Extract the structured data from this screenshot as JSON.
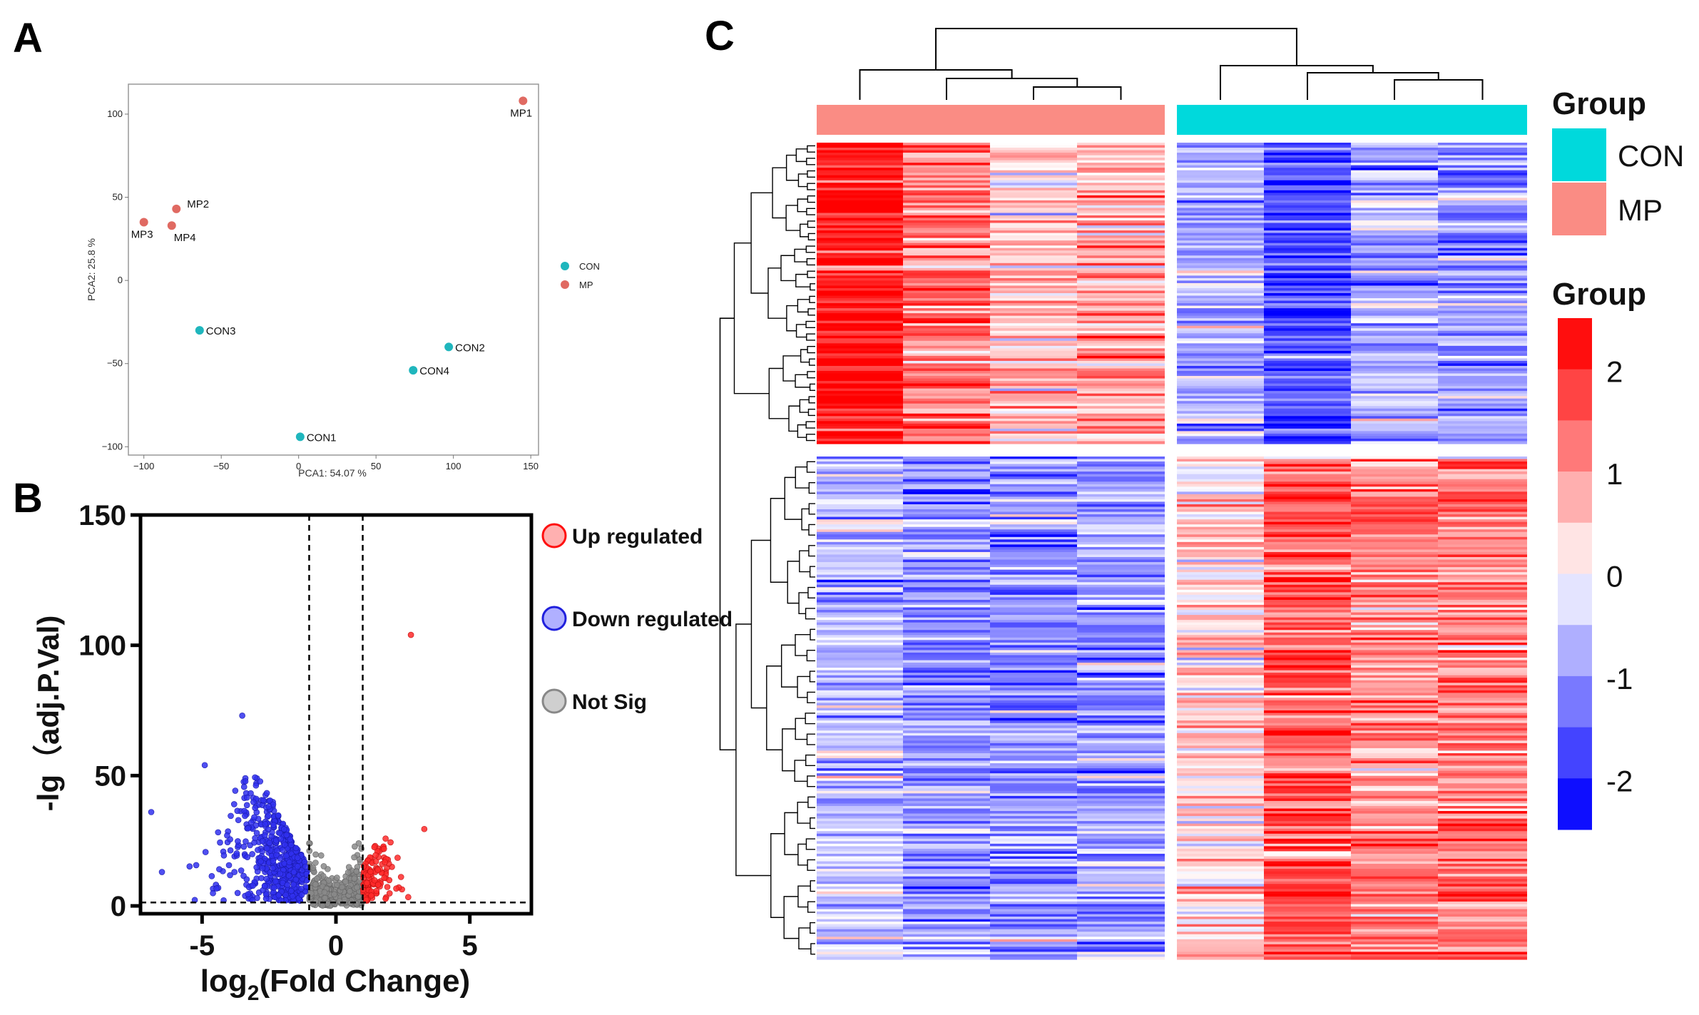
{
  "panels": {
    "a": "A",
    "b": "B",
    "c": "C"
  },
  "colors": {
    "con": "#1fb6bd",
    "mp": "#e06a62",
    "up": "#ff2020",
    "down": "#2222ee",
    "ns": "#888888",
    "heat_con": "#00d9dc",
    "heat_mp": "#fa8c84"
  },
  "chart_data": [
    {
      "type": "scatter",
      "panel": "A",
      "xlabel": "PCA1: 54.07 %",
      "ylabel": "PCA2: 25.8 %",
      "xlim": [
        -110,
        155
      ],
      "ylim": [
        -105,
        118
      ],
      "xticks": [
        -100,
        -50,
        0,
        50,
        100,
        150
      ],
      "yticks": [
        100,
        50,
        0,
        -50,
        -100
      ],
      "legend": [
        "CON",
        "MP"
      ],
      "legend_position": "right",
      "points": [
        {
          "label": "MP1",
          "group": "MP",
          "x": 145,
          "y": 108
        },
        {
          "label": "MP2",
          "group": "MP",
          "x": -79,
          "y": 43
        },
        {
          "label": "MP3",
          "group": "MP",
          "x": -100,
          "y": 35
        },
        {
          "label": "MP4",
          "group": "MP",
          "x": -82,
          "y": 33
        },
        {
          "label": "CON3",
          "group": "CON",
          "x": -64,
          "y": -30
        },
        {
          "label": "CON2",
          "group": "CON",
          "x": 97,
          "y": -40
        },
        {
          "label": "CON4",
          "group": "CON",
          "x": 74,
          "y": -54
        },
        {
          "label": "CON1",
          "group": "CON",
          "x": 1,
          "y": -94
        }
      ]
    },
    {
      "type": "scatter",
      "panel": "B",
      "xlabel": "log",
      "xlabel_sub": "2",
      "xlabel_rest": "(Fold Change)",
      "ylabel": "-lg（adj.P.Val)",
      "xlim": [
        -7.3,
        7.3
      ],
      "ylim": [
        -3,
        150
      ],
      "xticks": [
        -5,
        0,
        5
      ],
      "yticks": [
        150,
        100,
        50,
        0
      ],
      "fc_threshold": [
        -1,
        1
      ],
      "p_threshold": 1.3,
      "legend": [
        "Up regulated",
        "Down regulated",
        "Not Sig"
      ],
      "legend_position": "right",
      "notable_points": [
        {
          "x": 2.8,
          "y": 104,
          "group": "up"
        },
        {
          "x": 3.3,
          "y": 29.5,
          "group": "up"
        },
        {
          "x": -3.5,
          "y": 73,
          "group": "down"
        },
        {
          "x": -4.9,
          "y": 54,
          "group": "down"
        },
        {
          "x": -6.9,
          "y": 36,
          "group": "down"
        },
        {
          "x": -6.5,
          "y": 13,
          "group": "down"
        }
      ]
    },
    {
      "type": "heatmap",
      "panel": "C",
      "annotation_title": "Group",
      "annotation": [
        "CON",
        "MP"
      ],
      "colorbar_title": "Group",
      "colorbar_ticks": [
        2,
        1,
        0,
        -1,
        -2
      ],
      "colorbar_range": [
        -2.5,
        2.5
      ],
      "columns": [
        "MP",
        "MP",
        "MP",
        "MP",
        "CON",
        "CON",
        "CON",
        "CON"
      ],
      "clusters": [
        {
          "name": "MP-up",
          "rows": 120,
          "col_means": [
            2.3,
            1.3,
            0.5,
            0.8,
            -0.8,
            -1.8,
            -0.8,
            -1.0
          ]
        },
        {
          "name": "CON-up",
          "rows": 200,
          "col_means": [
            -0.6,
            -1.1,
            -1.1,
            -1.0,
            0.4,
            1.6,
            1.1,
            1.3
          ]
        }
      ]
    }
  ]
}
